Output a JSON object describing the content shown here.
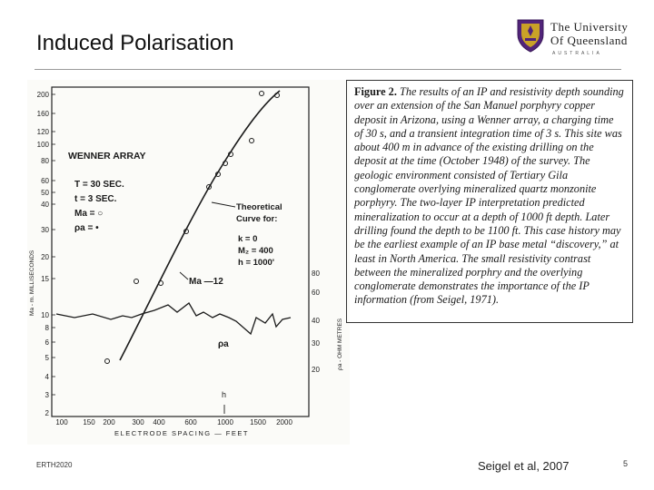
{
  "slide": {
    "title": "Induced Polarisation",
    "footer_left": "ERTH2020",
    "citation": "Seigel et al, 2007",
    "page_number": "5"
  },
  "logo": {
    "line1": "The University",
    "line2": "Of Queensland",
    "line3": "AUSTRALIA"
  },
  "caption": {
    "label": "Figure 2.",
    "text": "The results of an IP and resistivity depth sounding over an extension of the San Manuel porphyry copper deposit in Arizona, using a Wenner array, a charging time of 30 s, and a transient integration time of 3 s. This site was about 400 m in advance of the existing drilling on the deposit at the time (October 1948) of the survey. The geologic environment consisted of Tertiary Gila conglomerate overlying mineralized quartz monzonite porphyry. The two-layer IP interpretation predicted mineralization to occur at a depth of 1000 ft depth. Later drilling found the depth to be 1100 ft. This case history may be the earliest example of an IP base metal “discovery,” at least in North America. The small resistivity contrast between the mineralized porphry and the overlying conglomerate demonstrates the importance of the IP information (from Seigel, 1971)."
  },
  "figure": {
    "array_label": "WENNER ARRAY",
    "param_T": "T = 30 SEC.",
    "param_t": "t = 3 SEC.",
    "param_Ma": "Ma = ○",
    "param_rho": "ρa = •",
    "theoretical_1": "Theoretical",
    "theoretical_2": "Curve for:",
    "theo_k": "k = 0",
    "theo_M2": "M₂ = 400",
    "theo_h": "h = 1000'",
    "ma_label": "Ma —12",
    "rho_label": "ρa",
    "h_label": "h",
    "x_axis_label": "ELECTRODE SPACING — FEET",
    "left_axis_label": "Ma - m. MILLISECONDS",
    "right_axis_label": "ρa - OHM METRES",
    "x_ticks": [
      "100",
      "150",
      "200",
      "300",
      "400",
      "600",
      "1000",
      "1500",
      "2000"
    ],
    "left_ticks": [
      "200",
      "160",
      "120",
      "100",
      "80",
      "60",
      "50",
      "40",
      "30",
      "20",
      "15",
      "10",
      "8",
      "6",
      "5",
      "4",
      "3",
      "2"
    ],
    "right_ticks": [
      "80",
      "60",
      "40",
      "30",
      "20"
    ]
  }
}
